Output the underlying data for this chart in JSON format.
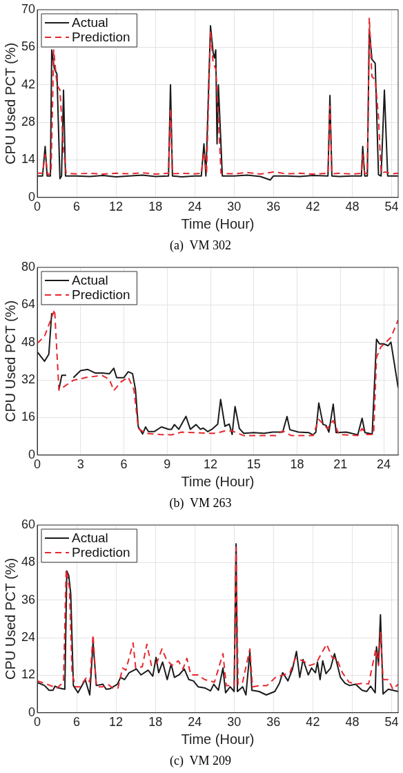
{
  "chart_data": [
    {
      "type": "line",
      "title": "(a)  VM 302",
      "xlabel": "Time (Hour)",
      "ylabel": "CPU Used PCT (%)",
      "xlim": [
        0,
        55
      ],
      "xticks": [
        0,
        6,
        12,
        18,
        24,
        30,
        36,
        42,
        48,
        54
      ],
      "ylim": [
        0,
        70
      ],
      "yticks": [
        0,
        14,
        28,
        42,
        56,
        70
      ],
      "grid": true,
      "legend": "top left",
      "series": [
        {
          "name": "Actual",
          "color": "#1a1a1a",
          "line_style": "solid",
          "x": [
            0,
            0.8,
            1.2,
            1.5,
            2.0,
            2.2,
            2.6,
            3.0,
            3.45,
            3.7,
            4.0,
            4.3,
            6,
            8,
            10,
            12,
            14,
            16,
            18,
            20,
            20.3,
            20.6,
            22,
            24,
            25.0,
            25.4,
            25.7,
            26.4,
            26.8,
            27.0,
            27.2,
            27.4,
            27.6,
            28.2,
            30,
            32,
            34,
            35.5,
            36,
            38,
            40,
            42,
            44.3,
            44.6,
            44.9,
            46,
            48,
            49.4,
            49.6,
            49.9,
            50.3,
            50.6,
            51.0,
            51.5,
            52.0,
            52.4,
            52.9,
            53.4,
            54,
            55
          ],
          "values": [
            8,
            8,
            19,
            8,
            8,
            55,
            48,
            46,
            7,
            8,
            40,
            8,
            8,
            7.8,
            8.2,
            7.7,
            8,
            8.3,
            7.8,
            8,
            42,
            8,
            7.7,
            8,
            8,
            20,
            8,
            64,
            54,
            52,
            55,
            20,
            42,
            8,
            8,
            8.3,
            7.8,
            6.5,
            8,
            8,
            7.8,
            8.2,
            8,
            38,
            8,
            7.8,
            8,
            8,
            19,
            8,
            8,
            63,
            51.5,
            50,
            8.5,
            8,
            40,
            8,
            8,
            8
          ]
        },
        {
          "name": "Prediction",
          "color": "#e8262d",
          "line_style": "dashed",
          "x": [
            0,
            0.8,
            1.2,
            1.6,
            2.1,
            2.5,
            3.0,
            3.45,
            4.0,
            4.4,
            6,
            8,
            10,
            12,
            14,
            16,
            18,
            20,
            20.3,
            20.6,
            22,
            24,
            25.0,
            25.4,
            25.8,
            26.4,
            26.8,
            27.2,
            27.6,
            28.0,
            30,
            32,
            34,
            36,
            38,
            40,
            42,
            44.3,
            44.6,
            44.9,
            46,
            48,
            49.4,
            49.6,
            49.9,
            50.3,
            50.6,
            51.0,
            51.5,
            52.0,
            52.4,
            53,
            54,
            55
          ],
          "values": [
            9,
            9,
            16,
            8.5,
            9,
            55,
            42,
            40,
            18,
            9,
            8.8,
            9,
            8.7,
            9,
            8.8,
            9.2,
            8.7,
            9,
            33,
            8.8,
            9,
            8.8,
            9,
            17,
            9,
            62,
            50,
            48,
            30,
            9,
            8.8,
            9.3,
            8.7,
            9.5,
            8.8,
            9,
            8.7,
            9,
            34,
            8.8,
            9,
            8.7,
            9,
            16,
            9,
            9,
            67,
            45,
            44,
            30,
            9,
            9.5,
            8.8,
            9
          ]
        }
      ]
    },
    {
      "type": "line",
      "title": "(b)  VM 263",
      "xlabel": "Time (Hour)",
      "ylabel": "CPU Used PCT (%)",
      "xlim": [
        0,
        25
      ],
      "xticks": [
        0,
        3,
        6,
        9,
        12,
        15,
        18,
        21,
        24
      ],
      "ylim": [
        0,
        80
      ],
      "yticks": [
        0,
        16,
        32,
        48,
        64,
        80
      ],
      "grid": true,
      "legend": "top left",
      "series": [
        {
          "name": "Actual",
          "color": "#1a1a1a",
          "line_style": "solid",
          "x": [
            0,
            0.5,
            0.8,
            1.0,
            1.3,
            1.5,
            1.7,
            2.0,
            2.2,
            2.5,
            3.0,
            3.5,
            4.0,
            4.5,
            5.0,
            5.3,
            5.5,
            6.0,
            6.3,
            6.6,
            6.8,
            7.0,
            7.3,
            7.5,
            7.7,
            8.1,
            8.6,
            9.1,
            9.3,
            9.5,
            9.8,
            10.3,
            10.6,
            11.0,
            11.3,
            11.5,
            11.8,
            12.1,
            12.5,
            12.7,
            13.0,
            13.3,
            13.5,
            13.7,
            14.0,
            14.3,
            15.0,
            15.7,
            16.3,
            17.0,
            17.3,
            17.5,
            18.1,
            18.8,
            19.1,
            19.3,
            19.5,
            19.8,
            20.0,
            20.2,
            20.5,
            20.7,
            21.4,
            21.9,
            22.2,
            22.5,
            22.7,
            23.2,
            23.5,
            23.7,
            24.0,
            24.3,
            24.5,
            25.0
          ],
          "values": [
            44,
            40,
            43,
            60.5,
            null,
            28,
            34,
            34,
            null,
            33,
            36,
            36.5,
            35,
            35,
            34.7,
            37,
            33,
            33,
            35.5,
            34.7,
            28,
            12,
            9,
            12,
            10,
            10,
            12,
            11,
            11,
            13,
            11,
            16.5,
            11,
            13,
            11,
            11.5,
            10,
            11,
            13.2,
            23.7,
            12.3,
            13.2,
            8.8,
            20.7,
            11.3,
            9.3,
            9.6,
            9.3,
            9.8,
            9.8,
            16.4,
            10.8,
            9.8,
            9.6,
            8.6,
            9.8,
            22.2,
            13,
            12.7,
            9.8,
            21.7,
            9.6,
            9.8,
            9.1,
            8.6,
            15.7,
            9.6,
            9,
            49.4,
            47.4,
            47.4,
            46.6,
            48.1,
            28.7
          ]
        },
        {
          "name": "Prediction",
          "color": "#e8262d",
          "line_style": "dashed",
          "x": [
            0,
            0.5,
            1.2,
            1.5,
            2.5,
            3.5,
            4.5,
            5.0,
            5.3,
            5.8,
            6.3,
            6.7,
            7.0,
            7.5,
            8.5,
            9.3,
            10.0,
            10.8,
            11.8,
            12.4,
            13.0,
            13.5,
            14.3,
            16.5,
            17.0,
            17.6,
            19.1,
            19.5,
            20.1,
            20.5,
            20.9,
            22.2,
            22.5,
            22.8,
            23.3,
            23.5,
            23.8,
            24.5,
            25.0
          ],
          "values": [
            47.6,
            50.6,
            62,
            27.7,
            31.9,
            33.2,
            33.9,
            32.2,
            27.5,
            31.2,
            33.2,
            27.7,
            11.3,
            9.3,
            8.8,
            8.6,
            9.8,
            9.6,
            9.3,
            9.3,
            10.3,
            10.3,
            8.3,
            8.3,
            10.3,
            8.3,
            8.3,
            15.2,
            11.3,
            14.7,
            8.8,
            8.3,
            11.3,
            8.8,
            8.8,
            41.6,
            46.1,
            50.1,
            57.6
          ]
        }
      ]
    },
    {
      "type": "line",
      "title": "(c)  VM 209",
      "xlabel": "Time (Hour)",
      "ylabel": "CPU Used PCT (%)",
      "xlim": [
        0,
        55
      ],
      "xticks": [
        0,
        6,
        12,
        18,
        24,
        30,
        36,
        42,
        48,
        54
      ],
      "ylim": [
        0,
        60
      ],
      "yticks": [
        0,
        12,
        24,
        36,
        48,
        60
      ],
      "grid": true,
      "legend": "top left",
      "series": [
        {
          "name": "Actual",
          "color": "#1a1a1a",
          "line_style": "solid",
          "x": [
            0,
            1.1,
            1.8,
            2.4,
            2.7,
            3.3,
            4.2,
            4.5,
            4.8,
            5.1,
            5.5,
            6.2,
            6.7,
            7.3,
            8.0,
            8.5,
            9.0,
            10.0,
            10.5,
            11.1,
            12.2,
            12.7,
            13.3,
            14.0,
            15.1,
            15.8,
            16.9,
            17.6,
            18.1,
            18.5,
            19.1,
            19.8,
            20.4,
            20.9,
            21.6,
            22.4,
            23.1,
            23.8,
            24.5,
            25.6,
            26.4,
            26.9,
            27.6,
            28.3,
            28.7,
            29.4,
            30.0,
            30.3,
            30.5,
            31.3,
            31.8,
            32.4,
            32.7,
            33.8,
            34.9,
            36.2,
            36.9,
            37.4,
            38.2,
            38.9,
            39.5,
            40.0,
            40.5,
            41.3,
            41.8,
            42.4,
            42.7,
            43.1,
            43.5,
            44.0,
            44.7,
            45.3,
            46.2,
            46.9,
            47.6,
            48.5,
            49.5,
            50.2,
            50.8,
            51.5,
            51.7,
            52.0,
            52.3,
            52.7,
            53.5,
            54.2,
            55
          ],
          "values": [
            9.7,
            8.7,
            7.2,
            7.2,
            8.5,
            7.9,
            7.5,
            45.3,
            43.8,
            38,
            8.7,
            6.4,
            8.3,
            10.6,
            5.7,
            22.6,
            8.7,
            9.1,
            7.5,
            7.7,
            9.1,
            11.3,
            10.6,
            12.8,
            14,
            12.1,
            13.6,
            11.7,
            17.7,
            12.8,
            16.2,
            10.6,
            15.5,
            11.3,
            12.1,
            14,
            10.6,
            10.2,
            8.3,
            7.9,
            7,
            9.1,
            7.2,
            14.3,
            6.4,
            8.3,
            6.8,
            54,
            6.8,
            8.3,
            5.7,
            19.6,
            7.2,
            6.8,
            5.7,
            6.8,
            9.4,
            12.8,
            10.2,
            14,
            19.6,
            11.3,
            17,
            12.1,
            14.3,
            12.8,
            16.2,
            10.6,
            16.6,
            12.5,
            14.3,
            18.9,
            11.3,
            9.4,
            8.7,
            9.1,
            7.2,
            6.8,
            8.5,
            6.4,
            21.1,
            15.8,
            31.3,
            6,
            7.5,
            7.2,
            6.8
          ]
        },
        {
          "name": "Prediction",
          "color": "#e8262d",
          "line_style": "dashed",
          "x": [
            0,
            1.5,
            3.0,
            4.0,
            4.4,
            4.9,
            5.3,
            5.8,
            6.5,
            7.5,
            8.0,
            8.5,
            9.0,
            10.0,
            10.8,
            11.5,
            12.3,
            13.0,
            13.5,
            14.6,
            15.0,
            16.0,
            16.7,
            17.4,
            18.2,
            19.0,
            19.6,
            20.5,
            21.5,
            22.2,
            22.8,
            23.4,
            24.5,
            25.5,
            27.0,
            28.3,
            28.8,
            30.0,
            30.3,
            30.6,
            31.3,
            32.4,
            32.8,
            34.0,
            35.0,
            36.3,
            37.5,
            38.5,
            39.3,
            40.5,
            41.5,
            42.5,
            43.3,
            44.1,
            45.0,
            45.6,
            46.5,
            47.5,
            48.5,
            49.5,
            50.5,
            51.6,
            52.0,
            52.3,
            52.7,
            53.5,
            54.2,
            55
          ],
          "values": [
            10.2,
            9.1,
            7.9,
            9.8,
            45.7,
            40,
            12.8,
            8.3,
            8.3,
            11.3,
            9.8,
            24.9,
            8.3,
            8.3,
            9.1,
            7.9,
            7.9,
            14.3,
            13.6,
            22.3,
            14.3,
            14.7,
            21.9,
            15.1,
            15.8,
            20.4,
            17.4,
            15.1,
            16.6,
            14,
            17.4,
            12.1,
            12.1,
            10.6,
            9.8,
            18.9,
            8.7,
            8.7,
            52.8,
            9.1,
            9.8,
            20.4,
            8.3,
            8.7,
            8.7,
            11.3,
            12.1,
            12.8,
            17.4,
            16.6,
            15.1,
            15.8,
            18.9,
            21.9,
            17.4,
            17.4,
            12.8,
            9.8,
            9.1,
            9.4,
            9.2,
            20.4,
            15.1,
            25.7,
            10.6,
            10.6,
            7.5,
            9.1
          ]
        }
      ]
    }
  ]
}
